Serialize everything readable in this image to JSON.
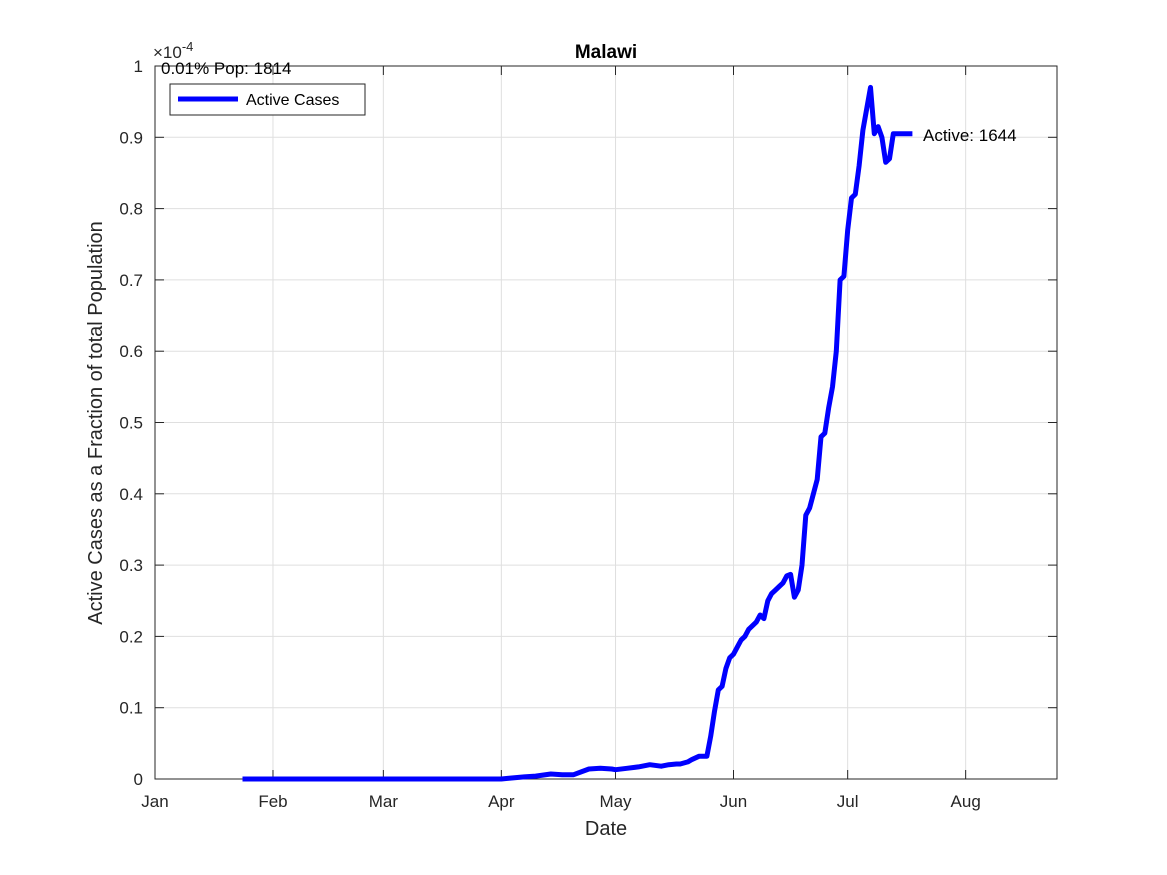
{
  "chart_data": {
    "type": "line",
    "title": "Malawi",
    "xlabel": "Date",
    "ylabel": "Active Cases as a Fraction of total Population",
    "y_exponent_label": "×10",
    "y_exponent_power": "-4",
    "x_ticks": [
      "Jan",
      "Feb",
      "Mar",
      "Apr",
      "May",
      "Jun",
      "Jul",
      "Aug"
    ],
    "x_tick_dates": [
      "2020-01-01",
      "2020-02-01",
      "2020-03-01",
      "2020-04-01",
      "2020-05-01",
      "2020-06-01",
      "2020-07-01",
      "2020-08-01"
    ],
    "xlim": [
      "2020-01-01",
      "2020-08-25"
    ],
    "y_ticks": [
      "0",
      "0.1",
      "0.2",
      "0.3",
      "0.4",
      "0.5",
      "0.6",
      "0.7",
      "0.8",
      "0.9",
      "1"
    ],
    "ylim": [
      0,
      1
    ],
    "y_scale": 0.0001,
    "grid": true,
    "legend": {
      "entries": [
        "Active Cases"
      ],
      "placement": "top-left"
    },
    "colors": {
      "series": "#0000ff",
      "grid": "#dfdfdf",
      "axes": "#262626"
    },
    "annotations": {
      "pop_label": "0.01% Pop: 1814",
      "active_label": "Active: 1644"
    },
    "series": [
      {
        "name": "Active Cases",
        "x": [
          "2020-01-24",
          "2020-02-15",
          "2020-03-15",
          "2020-04-01",
          "2020-04-03",
          "2020-04-07",
          "2020-04-10",
          "2020-04-14",
          "2020-04-17",
          "2020-04-20",
          "2020-04-24",
          "2020-04-27",
          "2020-04-30",
          "2020-05-01",
          "2020-05-04",
          "2020-05-07",
          "2020-05-10",
          "2020-05-13",
          "2020-05-15",
          "2020-05-17",
          "2020-05-18",
          "2020-05-20",
          "2020-05-21",
          "2020-05-23",
          "2020-05-25",
          "2020-05-26",
          "2020-05-27",
          "2020-05-28",
          "2020-05-29",
          "2020-05-30",
          "2020-05-31",
          "2020-06-01",
          "2020-06-02",
          "2020-06-03",
          "2020-06-04",
          "2020-06-05",
          "2020-06-06",
          "2020-06-07",
          "2020-06-08",
          "2020-06-09",
          "2020-06-10",
          "2020-06-11",
          "2020-06-12",
          "2020-06-13",
          "2020-06-14",
          "2020-06-15",
          "2020-06-16",
          "2020-06-17",
          "2020-06-18",
          "2020-06-19",
          "2020-06-20",
          "2020-06-21",
          "2020-06-22",
          "2020-06-23",
          "2020-06-24",
          "2020-06-25",
          "2020-06-26",
          "2020-06-27",
          "2020-06-28",
          "2020-06-29",
          "2020-06-30",
          "2020-07-01",
          "2020-07-02",
          "2020-07-03",
          "2020-07-04",
          "2020-07-05",
          "2020-07-06",
          "2020-07-07",
          "2020-07-08",
          "2020-07-09",
          "2020-07-10",
          "2020-07-11",
          "2020-07-12",
          "2020-07-13",
          "2020-07-14",
          "2020-07-15",
          "2020-07-16",
          "2020-07-17",
          "2020-07-18"
        ],
        "values": [
          0,
          0,
          0,
          0,
          0.001,
          0.003,
          0.004,
          0.007,
          0.006,
          0.006,
          0.014,
          0.015,
          0.014,
          0.013,
          0.015,
          0.017,
          0.02,
          0.018,
          0.02,
          0.021,
          0.021,
          0.024,
          0.027,
          0.032,
          0.032,
          0.06,
          0.095,
          0.125,
          0.13,
          0.155,
          0.17,
          0.175,
          0.185,
          0.195,
          0.2,
          0.21,
          0.215,
          0.22,
          0.23,
          0.225,
          0.25,
          0.26,
          0.265,
          0.27,
          0.275,
          0.285,
          0.287,
          0.255,
          0.265,
          0.3,
          0.37,
          0.38,
          0.4,
          0.42,
          0.48,
          0.485,
          0.52,
          0.55,
          0.6,
          0.7,
          0.705,
          0.77,
          0.815,
          0.82,
          0.86,
          0.91,
          0.94,
          0.97,
          0.905,
          0.915,
          0.9,
          0.865,
          0.87,
          0.905,
          0.905,
          0.905,
          0.905,
          0.905,
          0.905
        ]
      }
    ]
  }
}
